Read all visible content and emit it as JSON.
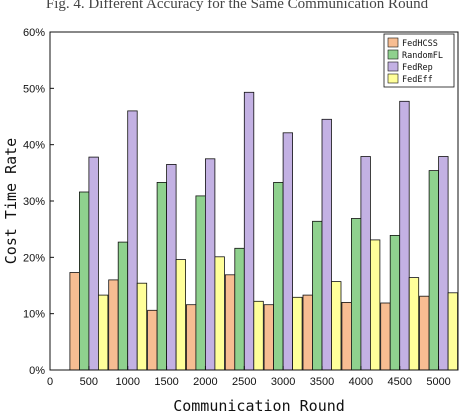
{
  "caption": "Fig. 4.  Different Accuracy for the Same Communication Round",
  "chart_data": {
    "type": "bar",
    "title": "",
    "xlabel": "Communication Round",
    "ylabel": "Cost Time Rate",
    "x_start_label": "0",
    "categories": [
      "500",
      "1000",
      "1500",
      "2000",
      "2500",
      "3000",
      "3500",
      "4000",
      "4500",
      "5000"
    ],
    "ylim": [
      0,
      60
    ],
    "yticks": [
      0,
      10,
      20,
      30,
      40,
      50,
      60
    ],
    "ytick_labels": [
      "0%",
      "10%",
      "20%",
      "30%",
      "40%",
      "50%",
      "60%"
    ],
    "grid": false,
    "legend_position": "top-right",
    "series": [
      {
        "name": "FedHCSS",
        "color": "#f7bd92",
        "values": [
          17.3,
          16.0,
          10.6,
          11.6,
          16.9,
          11.6,
          13.3,
          12.0,
          11.9,
          13.1
        ]
      },
      {
        "name": "RandomFL",
        "color": "#8fd18e",
        "values": [
          31.6,
          22.7,
          33.3,
          30.9,
          21.6,
          33.3,
          26.4,
          26.9,
          23.9,
          35.4
        ]
      },
      {
        "name": "FedRep",
        "color": "#c3b1e3",
        "values": [
          37.8,
          46.0,
          36.5,
          37.5,
          49.3,
          42.1,
          44.5,
          37.9,
          47.7,
          37.9
        ]
      },
      {
        "name": "FedEff",
        "color": "#ffff9a",
        "values": [
          13.3,
          15.4,
          19.6,
          20.1,
          12.2,
          12.9,
          15.7,
          23.1,
          16.4,
          13.7
        ]
      }
    ]
  }
}
